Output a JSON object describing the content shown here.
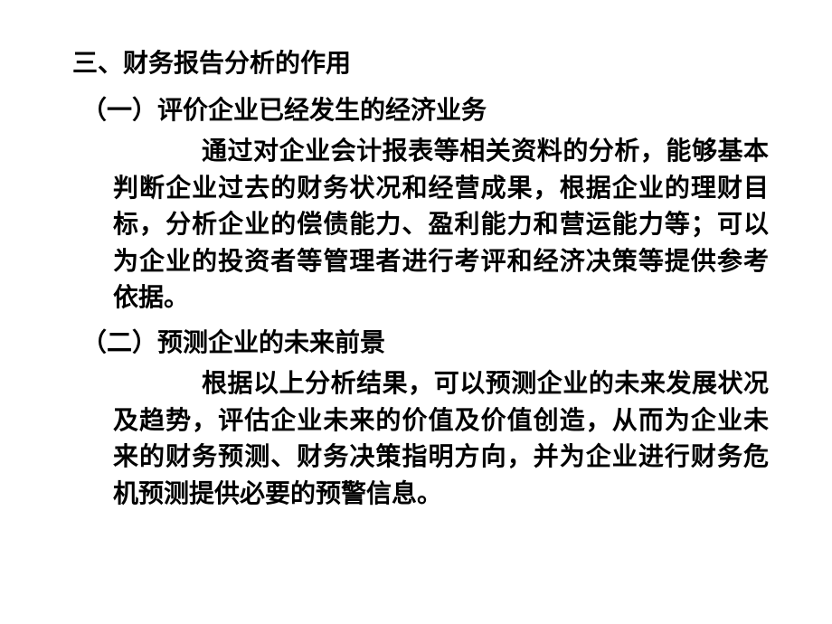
{
  "document": {
    "heading_main": "三、财务报告分析的作用",
    "section1": {
      "heading": "（一）评价企业已经发生的经济业务",
      "paragraph": "通过对企业会计报表等相关资料的分析，能够基本判断企业过去的财务状况和经营成果，根据企业的理财目标，分析企业的偿债能力、盈利能力和营运能力等；可以为企业的投资者等管理者进行考评和经济决策等提供参考依据。"
    },
    "section2": {
      "heading": "（二）预测企业的未来前景",
      "paragraph": "根据以上分析结果，可以预测企业的未来发展状况及趋势，评估企业未来的价值及价值创造，从而为企业未来的财务预测、财务决策指明方向，并为企业进行财务危机预测提供必要的预警信息。"
    },
    "styling": {
      "background_color": "#ffffff",
      "text_color": "#000000",
      "font_family": "SimSun",
      "heading_fontsize": 28,
      "body_fontsize": 28,
      "font_weight": "bold",
      "line_height": 1.45
    }
  }
}
